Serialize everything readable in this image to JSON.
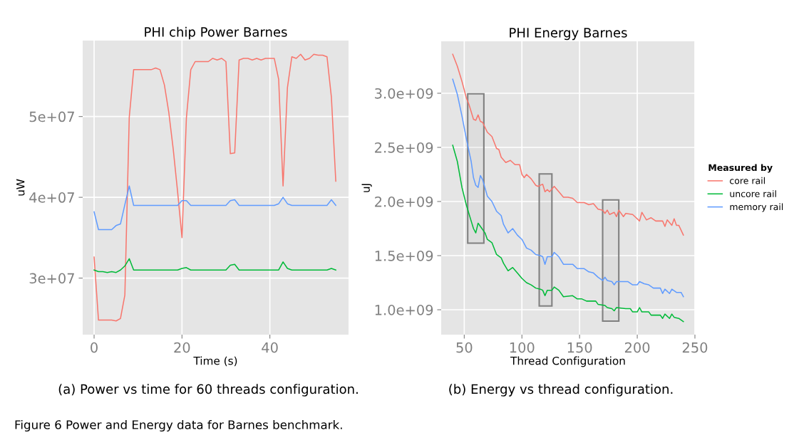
{
  "chart_data": [
    {
      "type": "line",
      "title": "PHI chip Power Barnes",
      "xlabel": "Time (s)",
      "ylabel": "uW",
      "x": [
        0,
        1,
        2,
        3,
        4,
        5,
        6,
        7,
        8,
        9,
        10,
        11,
        12,
        13,
        14,
        15,
        16,
        17,
        18,
        19,
        20,
        21,
        22,
        23,
        24,
        25,
        26,
        27,
        28,
        29,
        30,
        31,
        32,
        33,
        34,
        35,
        36,
        37,
        38,
        39,
        40,
        41,
        42,
        43,
        44,
        45,
        46,
        47,
        48,
        49,
        50,
        51,
        52,
        53,
        54,
        55
      ],
      "series": [
        {
          "color": "#f8766d",
          "values": [
            32600000.0,
            24800000.0,
            24800000.0,
            24800000.0,
            24800000.0,
            24700000.0,
            25000000.0,
            27900000.0,
            49900000.0,
            55800000.0,
            55800000.0,
            55800000.0,
            55800000.0,
            55800000.0,
            56000000.0,
            55800000.0,
            53900000.0,
            50500000.0,
            46000000.0,
            40700000.0,
            35000000.0,
            49800000.0,
            55800000.0,
            56800000.0,
            56800000.0,
            56800000.0,
            56800000.0,
            57200000.0,
            57000000.0,
            57200000.0,
            56800000.0,
            45400000.0,
            45500000.0,
            57000000.0,
            57200000.0,
            57200000.0,
            57000000.0,
            57200000.0,
            57000000.0,
            57200000.0,
            57200000.0,
            57200000.0,
            54600000.0,
            41400000.0,
            53600000.0,
            57400000.0,
            57200000.0,
            57700000.0,
            57000000.0,
            57200000.0,
            57700000.0,
            57600000.0,
            57600000.0,
            57400000.0,
            52400000.0,
            42000000.0
          ]
        },
        {
          "color": "#00ba38",
          "values": [
            31000000.0,
            30800000.0,
            30800000.0,
            30700000.0,
            30800000.0,
            30700000.0,
            31000000.0,
            31500000.0,
            32400000.0,
            31000000.0,
            31000000.0,
            31000000.0,
            31000000.0,
            31000000.0,
            31000000.0,
            31000000.0,
            31000000.0,
            31000000.0,
            31000000.0,
            31000000.0,
            31200000.0,
            31300000.0,
            31000000.0,
            31000000.0,
            31000000.0,
            31000000.0,
            31000000.0,
            31000000.0,
            31000000.0,
            31000000.0,
            31000000.0,
            31600000.0,
            31700000.0,
            31000000.0,
            31000000.0,
            31000000.0,
            31000000.0,
            31000000.0,
            31000000.0,
            31000000.0,
            31000000.0,
            31000000.0,
            31000000.0,
            32000000.0,
            31200000.0,
            31000000.0,
            31000000.0,
            31000000.0,
            31000000.0,
            31000000.0,
            31000000.0,
            31000000.0,
            31000000.0,
            31000000.0,
            31200000.0,
            31000000.0
          ]
        },
        {
          "color": "#619cff",
          "values": [
            38200000.0,
            36000000.0,
            36000000.0,
            36000000.0,
            36000000.0,
            36500000.0,
            36700000.0,
            39100000.0,
            41400000.0,
            39000000.0,
            39000000.0,
            39000000.0,
            39000000.0,
            39000000.0,
            39000000.0,
            39000000.0,
            39000000.0,
            39000000.0,
            39000000.0,
            39000000.0,
            39600000.0,
            39600000.0,
            39000000.0,
            39000000.0,
            39000000.0,
            39000000.0,
            39000000.0,
            39000000.0,
            39000000.0,
            39000000.0,
            39000000.0,
            39600000.0,
            39700000.0,
            39000000.0,
            39000000.0,
            39000000.0,
            39000000.0,
            39000000.0,
            39000000.0,
            39000000.0,
            39000000.0,
            39000000.0,
            39200000.0,
            40000000.0,
            39200000.0,
            39000000.0,
            39000000.0,
            39000000.0,
            39000000.0,
            39000000.0,
            39000000.0,
            39000000.0,
            39000000.0,
            39000000.0,
            39700000.0,
            39000000.0
          ]
        }
      ],
      "xlim": [
        -2.6,
        57.9
      ],
      "xticks": [
        0,
        20,
        40
      ],
      "ylim": [
        23000000.0,
        59400000.0
      ],
      "yticks": [
        {
          "value": 30000000.0,
          "label": "3e+07"
        },
        {
          "value": 40000000.0,
          "label": "4e+07"
        },
        {
          "value": 50000000.0,
          "label": "5e+07"
        }
      ],
      "grid": true,
      "legend": false,
      "annotations": [
        "(a) Power vs time for 60 threads configuration.",
        "Figure 6 Power and Energy data for Barnes benchmark."
      ]
    },
    {
      "type": "line",
      "title": "PHI Energy Barnes",
      "xlabel": "Thread Configuration",
      "ylabel": "uJ",
      "legend_title": "Measured by",
      "series": [
        {
          "name": "core rail",
          "color": "#f8766d",
          "x": [
            40,
            44,
            48,
            52,
            54,
            58,
            60,
            62,
            64,
            66,
            70,
            74,
            78,
            80,
            82,
            86,
            90,
            94,
            98,
            100,
            102,
            104,
            108,
            112,
            114,
            118,
            120,
            122,
            124,
            128,
            132,
            136,
            140,
            144,
            148,
            154,
            158,
            162,
            166,
            170,
            172,
            174,
            176,
            180,
            182,
            184,
            188,
            190,
            196,
            198,
            202,
            204,
            208,
            212,
            216,
            222,
            224,
            226,
            230,
            232,
            234,
            236,
            240
          ],
          "values": [
            3360000000.0,
            3250000000.0,
            3110000000.0,
            2950000000.0,
            2900000000.0,
            2760000000.0,
            2750000000.0,
            2800000000.0,
            2740000000.0,
            2730000000.0,
            2640000000.0,
            2600000000.0,
            2490000000.0,
            2480000000.0,
            2410000000.0,
            2360000000.0,
            2380000000.0,
            2340000000.0,
            2340000000.0,
            2250000000.0,
            2220000000.0,
            2250000000.0,
            2210000000.0,
            2150000000.0,
            2140000000.0,
            2160000000.0,
            2090000000.0,
            2110000000.0,
            2090000000.0,
            2140000000.0,
            2090000000.0,
            2040000000.0,
            2040000000.0,
            2030000000.0,
            1990000000.0,
            1990000000.0,
            1970000000.0,
            1980000000.0,
            1930000000.0,
            1920000000.0,
            1890000000.0,
            1920000000.0,
            1880000000.0,
            1900000000.0,
            1860000000.0,
            1920000000.0,
            1860000000.0,
            1890000000.0,
            1880000000.0,
            1860000000.0,
            1820000000.0,
            1900000000.0,
            1830000000.0,
            1850000000.0,
            1820000000.0,
            1820000000.0,
            1770000000.0,
            1830000000.0,
            1780000000.0,
            1840000000.0,
            1780000000.0,
            1780000000.0,
            1690000000.0
          ]
        },
        {
          "name": "uncore rail",
          "color": "#00ba38",
          "x": [
            40,
            44,
            48,
            52,
            56,
            58,
            60,
            62,
            64,
            68,
            70,
            74,
            78,
            82,
            84,
            88,
            92,
            96,
            100,
            104,
            108,
            112,
            116,
            118,
            120,
            122,
            126,
            128,
            132,
            136,
            144,
            148,
            152,
            156,
            164,
            166,
            172,
            174,
            178,
            180,
            182,
            190,
            194,
            196,
            200,
            202,
            204,
            210,
            212,
            220,
            222,
            224,
            228,
            230,
            232,
            236,
            240
          ],
          "values": [
            2520000000.0,
            2370000000.0,
            2130000000.0,
            1960000000.0,
            1820000000.0,
            1750000000.0,
            1710000000.0,
            1800000000.0,
            1770000000.0,
            1710000000.0,
            1650000000.0,
            1620000000.0,
            1510000000.0,
            1480000000.0,
            1430000000.0,
            1360000000.0,
            1390000000.0,
            1340000000.0,
            1290000000.0,
            1250000000.0,
            1230000000.0,
            1200000000.0,
            1190000000.0,
            1180000000.0,
            1130000000.0,
            1180000000.0,
            1180000000.0,
            1210000000.0,
            1180000000.0,
            1120000000.0,
            1130000000.0,
            1100000000.0,
            1100000000.0,
            1080000000.0,
            1080000000.0,
            1050000000.0,
            1040000000.0,
            1020000000.0,
            1010000000.0,
            990000000.0,
            1020000000.0,
            1010000000.0,
            1010000000.0,
            980000000.0,
            980000000.0,
            1020000000.0,
            980000000.0,
            980000000.0,
            950000000.0,
            950000000.0,
            920000000.0,
            960000000.0,
            920000000.0,
            960000000.0,
            930000000.0,
            920000000.0,
            890000000.0
          ]
        },
        {
          "name": "memory rail",
          "color": "#619cff",
          "x": [
            40,
            44,
            48,
            52,
            56,
            58,
            60,
            62,
            64,
            66,
            70,
            74,
            78,
            82,
            84,
            88,
            92,
            96,
            100,
            104,
            108,
            112,
            116,
            118,
            120,
            122,
            126,
            128,
            132,
            136,
            144,
            148,
            154,
            158,
            162,
            166,
            170,
            172,
            174,
            178,
            180,
            182,
            192,
            196,
            200,
            202,
            206,
            210,
            214,
            220,
            222,
            224,
            228,
            230,
            234,
            238,
            240
          ],
          "values": [
            3130000000.0,
            2990000000.0,
            2790000000.0,
            2570000000.0,
            2370000000.0,
            2220000000.0,
            2150000000.0,
            2130000000.0,
            2240000000.0,
            2200000000.0,
            2050000000.0,
            2000000000.0,
            1910000000.0,
            1870000000.0,
            1790000000.0,
            1710000000.0,
            1750000000.0,
            1690000000.0,
            1650000000.0,
            1570000000.0,
            1550000000.0,
            1510000000.0,
            1500000000.0,
            1490000000.0,
            1420000000.0,
            1490000000.0,
            1490000000.0,
            1530000000.0,
            1490000000.0,
            1420000000.0,
            1420000000.0,
            1380000000.0,
            1380000000.0,
            1350000000.0,
            1340000000.0,
            1300000000.0,
            1270000000.0,
            1300000000.0,
            1270000000.0,
            1260000000.0,
            1230000000.0,
            1260000000.0,
            1260000000.0,
            1230000000.0,
            1230000000.0,
            1260000000.0,
            1240000000.0,
            1230000000.0,
            1200000000.0,
            1200000000.0,
            1150000000.0,
            1190000000.0,
            1150000000.0,
            1190000000.0,
            1160000000.0,
            1160000000.0,
            1120000000.0
          ]
        }
      ],
      "xlim": [
        30,
        250
      ],
      "xticks": [
        50,
        100,
        150,
        200,
        250
      ],
      "ylim": [
        770000000.0,
        3480000000.0
      ],
      "yticks": [
        {
          "value": 1000000000.0,
          "label": "1.0e+09"
        },
        {
          "value": 1500000000.0,
          "label": "1.5e+09"
        },
        {
          "value": 2000000000.0,
          "label": "2.0e+09"
        },
        {
          "value": 2500000000.0,
          "label": "2.5e+09"
        },
        {
          "value": 3000000000.0,
          "label": "3.0e+09"
        }
      ],
      "bands": [
        {
          "axis": "x",
          "from": 53,
          "to": 67,
          "color": "#808080"
        },
        {
          "axis": "x",
          "from": 115,
          "to": 126,
          "color": "#808080"
        },
        {
          "axis": "x",
          "from": 170,
          "to": 184,
          "color": "#808080"
        }
      ],
      "grid": true,
      "legend": "right",
      "annotations": [
        "(b) Energy vs thread configuration."
      ]
    }
  ]
}
